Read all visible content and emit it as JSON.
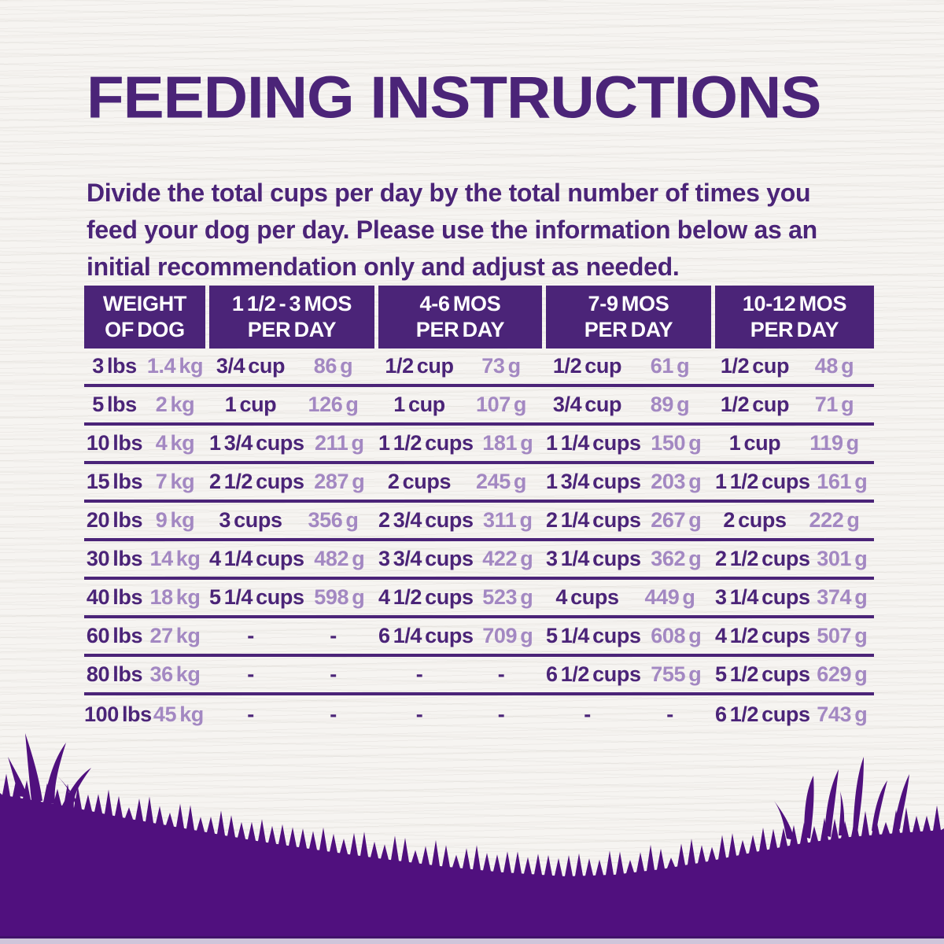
{
  "colors": {
    "ink": "#4b2478",
    "light_value": "#a388c2",
    "grass": "#50107e",
    "background": "#f6f4f1",
    "header_text": "#ffffff",
    "bottom_strip": "#cfc5da"
  },
  "page": {
    "title": "FEEDING INSTRUCTIONS",
    "intro_lines": [
      "Divide the total cups per day by the total number of times you",
      "feed your dog per day. Please use the information below as an",
      "initial recommendation only and adjust as needed."
    ]
  },
  "table": {
    "header": [
      {
        "line1": "WEIGHT",
        "line2": "OF DOG"
      },
      {
        "line1": "1 1/2 - 3 MOS",
        "line2": "PER DAY"
      },
      {
        "line1": "4-6 MOS",
        "line2": "PER DAY"
      },
      {
        "line1": "7-9 MOS",
        "line2": "PER DAY"
      },
      {
        "line1": "10-12 MOS",
        "line2": "PER DAY"
      }
    ],
    "rows": [
      {
        "cells": [
          "3 lbs",
          "1.4 kg",
          "3/4 cup",
          "86 g",
          "1/2 cup",
          "73 g",
          "1/2 cup",
          "61 g",
          "1/2 cup",
          "48 g"
        ]
      },
      {
        "cells": [
          "5 lbs",
          "2 kg",
          "1 cup",
          "126 g",
          "1 cup",
          "107 g",
          "3/4 cup",
          "89 g",
          "1/2 cup",
          "71 g"
        ]
      },
      {
        "cells": [
          "10 lbs",
          "4 kg",
          "1 3/4 cups",
          "211 g",
          "1 1/2 cups",
          "181 g",
          "1 1/4 cups",
          "150 g",
          "1 cup",
          "119 g"
        ]
      },
      {
        "cells": [
          "15 lbs",
          "7 kg",
          "2 1/2 cups",
          "287 g",
          "2 cups",
          "245 g",
          "1 3/4 cups",
          "203 g",
          "1 1/2 cups",
          "161 g"
        ]
      },
      {
        "cells": [
          "20 lbs",
          "9 kg",
          "3 cups",
          "356 g",
          "2 3/4 cups",
          "311 g",
          "2 1/4 cups",
          "267 g",
          "2 cups",
          "222 g"
        ]
      },
      {
        "cells": [
          "30 lbs",
          "14 kg",
          "4 1/4 cups",
          "482 g",
          "3 3/4 cups",
          "422 g",
          "3 1/4 cups",
          "362 g",
          "2 1/2 cups",
          "301 g"
        ]
      },
      {
        "cells": [
          "40 lbs",
          "18 kg",
          "5 1/4 cups",
          "598 g",
          "4 1/2 cups",
          "523 g",
          "4 cups",
          "449 g",
          "3 1/4 cups",
          "374 g"
        ]
      },
      {
        "cells": [
          "60 lbs",
          "27 kg",
          "-",
          "-",
          "6 1/4 cups",
          "709 g",
          "5 1/4 cups",
          "608 g",
          "4 1/2 cups",
          "507 g"
        ]
      },
      {
        "cells": [
          "80 lbs",
          "36 kg",
          "-",
          "-",
          "-",
          "-",
          "6 1/2 cups",
          "755 g",
          "5 1/2 cups",
          "629 g"
        ]
      },
      {
        "cells": [
          "100 lbs",
          "45 kg",
          "-",
          "-",
          "-",
          "-",
          "-",
          "-",
          "6 1/2 cups",
          "743 g"
        ]
      }
    ]
  }
}
